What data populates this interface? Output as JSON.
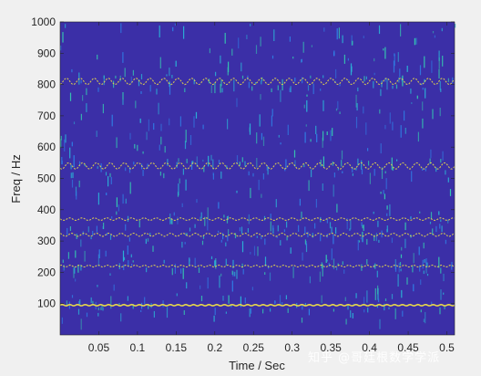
{
  "chart_data": {
    "type": "heatmap",
    "title": "",
    "xlabel": "Time / Sec",
    "ylabel": "Freq / Hz",
    "xlim": [
      0,
      0.51
    ],
    "ylim": [
      0,
      1000
    ],
    "xticks": [
      0.05,
      0.1,
      0.15,
      0.2,
      0.25,
      0.3,
      0.35,
      0.4,
      0.45,
      0.5
    ],
    "xtick_labels": [
      "0.05",
      "0.1",
      "0.15",
      "0.2",
      "0.25",
      "0.3",
      "0.35",
      "0.4",
      "0.45",
      "0.5"
    ],
    "yticks": [
      100,
      200,
      300,
      400,
      500,
      600,
      700,
      800,
      900,
      1000
    ],
    "ytick_labels": [
      "100",
      "200",
      "300",
      "400",
      "500",
      "600",
      "700",
      "800",
      "900",
      "1000"
    ],
    "background_color": "#3b2fa7",
    "ridge_color": "#e6d64a",
    "noise_colors": [
      "#2f7fe6",
      "#2bb1d6",
      "#35c7b0"
    ],
    "ridges": [
      {
        "freq_hz": 95,
        "ripple_hz": 2,
        "period_s": 0.01
      },
      {
        "freq_hz": 220,
        "ripple_hz": 3,
        "period_s": 0.012
      },
      {
        "freq_hz": 320,
        "ripple_hz": 5,
        "period_s": 0.016
      },
      {
        "freq_hz": 370,
        "ripple_hz": 4,
        "period_s": 0.016
      },
      {
        "freq_hz": 540,
        "ripple_hz": 10,
        "period_s": 0.018
      },
      {
        "freq_hz": 810,
        "ripple_hz": 10,
        "period_s": 0.018
      }
    ],
    "noise_bands_hz": [
      [
        50,
        1000
      ]
    ],
    "grid": false
  },
  "watermark": "知乎 @哥廷根数学学派"
}
